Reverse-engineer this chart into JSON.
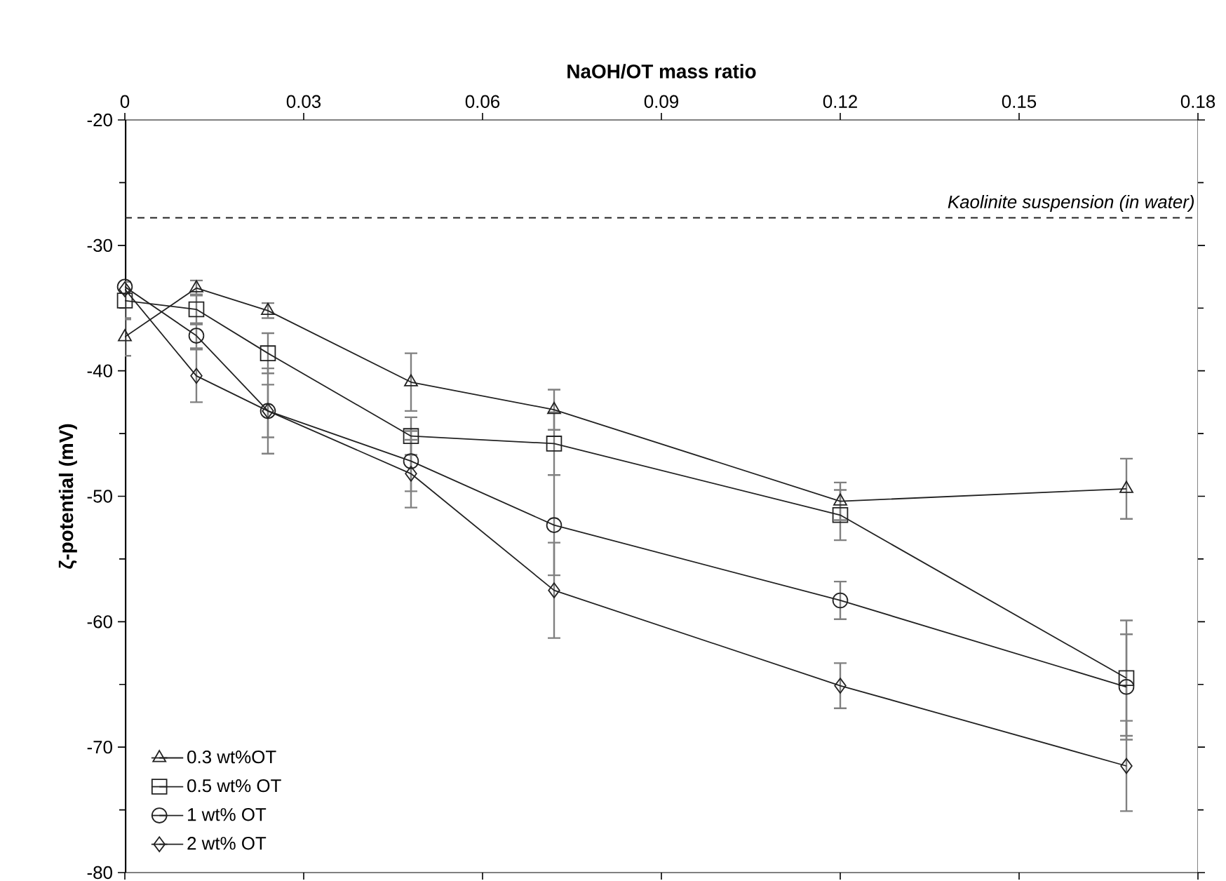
{
  "chart_data": {
    "type": "line",
    "xlabel": "NaOH/OT mass ratio",
    "ylabel": "ζ-potential (mV)",
    "x": [
      0,
      0.012,
      0.024,
      0.048,
      0.072,
      0.12,
      0.168
    ],
    "xlim": [
      0,
      0.18
    ],
    "xticks": [
      0,
      0.03,
      0.06,
      0.09,
      0.12,
      0.15,
      0.18
    ],
    "ylim": [
      -80,
      -20
    ],
    "yticks": [
      -80,
      -70,
      -60,
      -50,
      -40,
      -30,
      -20
    ],
    "grid": false,
    "legend": "bottom left",
    "line_style": "solid",
    "series": [
      {
        "name": "0.3 wt%OT",
        "color": "#222222",
        "marker": "triangle",
        "values": [
          -37.3,
          -33.4,
          -35.2,
          -40.9,
          -43.1,
          -50.4,
          -49.4
        ],
        "errors": [
          1.5,
          0.6,
          0.6,
          2.3,
          1.6,
          1.5,
          2.4
        ]
      },
      {
        "name": "0.5 wt% OT",
        "color": "#222222",
        "marker": "square",
        "values": [
          -34.4,
          -35.1,
          -38.6,
          -45.2,
          -45.8,
          -51.5,
          -64.5
        ],
        "errors": [
          1.5,
          1.2,
          1.6,
          1.5,
          2.5,
          2.0,
          4.6
        ]
      },
      {
        "name": "1 wt% OT",
        "color": "#222222",
        "marker": "circle",
        "values": [
          -33.3,
          -37.2,
          -43.2,
          -47.2,
          -52.3,
          -58.3,
          -65.2
        ],
        "errors": [
          null,
          1.0,
          3.4,
          2.4,
          4.0,
          1.5,
          4.2
        ]
      },
      {
        "name": "2 wt% OT",
        "color": "#222222",
        "marker": "diamond",
        "values": [
          -33.5,
          -40.4,
          -43.2,
          -48.2,
          -57.5,
          -65.1,
          -71.5
        ],
        "errors": [
          null,
          2.1,
          2.1,
          2.7,
          3.8,
          1.8,
          3.6
        ]
      }
    ],
    "ref_lines": [
      {
        "axis": "y",
        "value": -27.8,
        "label": "*Kaolinite suspension (in water)*",
        "line_style": "dashed",
        "color": "#222222"
      }
    ]
  }
}
